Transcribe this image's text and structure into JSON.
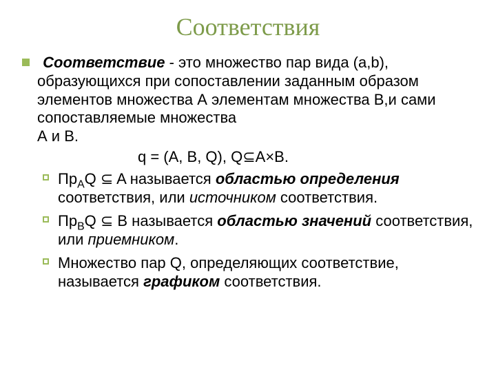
{
  "colors": {
    "title": "#7d9b4a",
    "square_bullet_border": "#9bbb59",
    "hollow_bullet_border": "#9bbb59",
    "text": "#000000",
    "background": "#ffffff"
  },
  "typography": {
    "title_family": "Times New Roman",
    "title_size_pt": 36,
    "body_family": "Arial",
    "body_size_pt": 22
  },
  "title": "Соответствия",
  "lead": {
    "term": "Соответствие",
    "rest": " - это множество пар вида (a,b), образующихся при  сопоставлении заданным образом  элементов множества А элементам множества В,и сами сопоставляемые множества"
  },
  "lead_cont": "А и В.",
  "formula": "q = (A, B, Q), Q⊆A×B.",
  "items": [
    {
      "pre": "Пр",
      "sub": "A",
      "mid": "Q ⊆ A называется ",
      "term1": "областью определения",
      "after1": " соответствия, или ",
      "term2": "источником",
      "after2": " соответствия."
    },
    {
      "pre": "Пр",
      "sub": "B",
      "mid": "Q ⊆ B называется ",
      "term1": "областью значений",
      "after1": " соответствия, или ",
      "term2": "приемником",
      "after2": "."
    },
    {
      "plain_pre": "Множество пар Q, определяющих соответствие, называется ",
      "term1": "графиком",
      "after1": " соответствия."
    }
  ]
}
